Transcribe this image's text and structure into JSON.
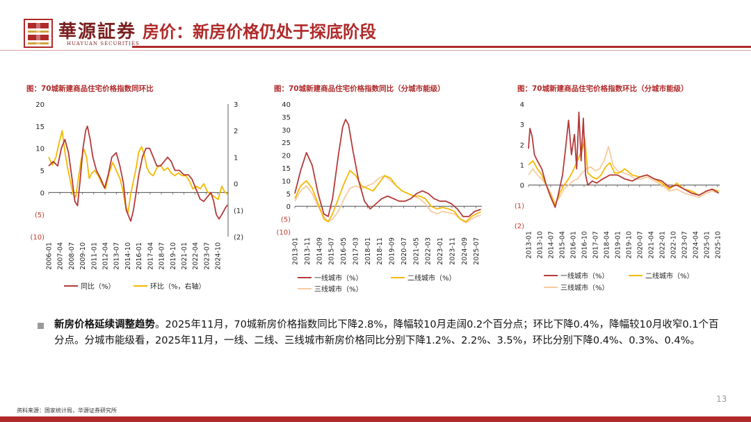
{
  "header": {
    "brand_cn": "華源証券",
    "brand_en": "HUAYUAN SECURITIES",
    "title": "房价：新房价格仍处于探底阶段",
    "accent": "#b02a2a"
  },
  "chart_titles": [
    "图：70城新建商品住宅价格指数同环比",
    "图：70城新建商品住宅价格指数同比（分城市能级）",
    "图：70城新建商品住宅价格指数环比（分城市能级）"
  ],
  "chart_data": [
    {
      "type": "line",
      "title": "图：70城新建商品住宅价格指数同环比",
      "x_ticks": [
        "2006-01",
        "2007-04",
        "2008-07",
        "2009-10",
        "2011-01",
        "2012-04",
        "2013-07",
        "2014-10",
        "2016-01",
        "2017-04",
        "2018-07",
        "2019-10",
        "2021-01",
        "2022-04",
        "2023-07",
        "2024-10"
      ],
      "ylim_left": [
        -10,
        20
      ],
      "yticks_left": [
        "20",
        "15",
        "10",
        "5",
        "0",
        "(5)",
        "(10)"
      ],
      "ylim_right": [
        -2,
        3
      ],
      "yticks_right": [
        "3",
        "2",
        "1",
        "0",
        "(1)",
        "(2)"
      ],
      "series": [
        {
          "name": "同比（%）",
          "axis": "left",
          "color": "#b5393a",
          "x": [
            2006.0,
            2006.5,
            2007.0,
            2007.4,
            2007.8,
            2008.2,
            2008.6,
            2008.9,
            2009.2,
            2009.5,
            2009.8,
            2010.1,
            2010.3,
            2010.6,
            2010.9,
            2011.3,
            2011.8,
            2012.2,
            2012.6,
            2013.0,
            2013.5,
            2013.9,
            2014.3,
            2014.6,
            2014.9,
            2015.1,
            2015.4,
            2015.7,
            2016.0,
            2016.4,
            2016.8,
            2017.2,
            2017.6,
            2018.0,
            2018.4,
            2018.8,
            2019.2,
            2019.6,
            2020.0,
            2020.5,
            2021.0,
            2021.5,
            2021.9,
            2022.3,
            2022.8,
            2023.2,
            2023.6,
            2024.0,
            2024.3,
            2024.6,
            2024.9,
            2025.2,
            2025.6,
            2025.83
          ],
          "y": [
            6,
            7,
            6,
            10,
            12,
            9,
            3,
            -2,
            -3,
            3,
            10,
            14,
            15,
            12,
            8,
            5,
            3,
            1,
            4,
            8,
            9,
            6,
            2,
            -4,
            -5.5,
            -6.5,
            -4,
            0,
            4,
            8,
            10,
            10,
            8,
            6,
            6,
            7,
            8,
            7,
            5,
            5,
            4,
            4,
            3,
            1,
            -1.5,
            -2,
            -1,
            0,
            -2,
            -5,
            -6,
            -5,
            -3.5,
            -2.8
          ]
        },
        {
          "name": "环比（%，右轴）",
          "axis": "right",
          "color": "#f4b800",
          "x": [
            2006.0,
            2006.4,
            2006.8,
            2007.2,
            2007.5,
            2007.8,
            2008.1,
            2008.4,
            2008.7,
            2009.0,
            2009.3,
            2009.6,
            2009.9,
            2010.2,
            2010.5,
            2010.8,
            2011.1,
            2011.5,
            2011.9,
            2012.3,
            2012.7,
            2013.1,
            2013.5,
            2013.9,
            2014.2,
            2014.5,
            2014.8,
            2015.1,
            2015.4,
            2015.7,
            2016.0,
            2016.3,
            2016.6,
            2016.9,
            2017.2,
            2017.6,
            2018.0,
            2018.4,
            2018.8,
            2019.2,
            2019.6,
            2020.0,
            2020.4,
            2020.8,
            2021.2,
            2021.6,
            2022.0,
            2022.4,
            2022.8,
            2023.2,
            2023.6,
            2024.0,
            2024.4,
            2024.8,
            2025.2,
            2025.5,
            2025.83
          ],
          "y": [
            1.0,
            0.7,
            1.0,
            1.6,
            2.0,
            1.2,
            0.6,
            0.1,
            -0.4,
            -0.5,
            0.2,
            0.9,
            1.3,
            1.0,
            0.2,
            0.4,
            0.5,
            0.3,
            0,
            -0.2,
            0.4,
            0.8,
            0.5,
            0.2,
            -0.2,
            -0.8,
            -1.1,
            -0.4,
            0.1,
            0.6,
            1.2,
            1.4,
            1.1,
            0.6,
            0.4,
            0.3,
            0.6,
            0.7,
            0.5,
            0.6,
            0.4,
            0.3,
            0.4,
            0.3,
            0.3,
            0.1,
            -0.2,
            -0.1,
            -0.2,
            0,
            -0.3,
            -0.4,
            -0.5,
            -0.6,
            -0.1,
            -0.3,
            -0.4
          ]
        }
      ]
    },
    {
      "type": "line",
      "title": "图：70城新建商品住宅价格指数同比（分城市能级）",
      "x_ticks": [
        "2013-01",
        "2013-11",
        "2014-09",
        "2015-07",
        "2016-05",
        "2017-03",
        "2018-01",
        "2018-11",
        "2019-09",
        "2020-07",
        "2021-05",
        "2022-03",
        "2023-01",
        "2023-11",
        "2024-09",
        "2025-07"
      ],
      "ylim": [
        -10,
        40
      ],
      "yticks": [
        "40",
        "35",
        "30",
        "25",
        "20",
        "15",
        "10",
        "5",
        "0",
        "(5)",
        "(10)"
      ],
      "series": [
        {
          "name": "一线城市（%）",
          "color": "#b5393a",
          "x": [
            2013.0,
            2013.4,
            2013.8,
            2014.2,
            2014.6,
            2015.0,
            2015.3,
            2015.6,
            2016.0,
            2016.3,
            2016.5,
            2016.7,
            2017.0,
            2017.4,
            2017.8,
            2018.2,
            2018.6,
            2019.0,
            2019.4,
            2019.8,
            2020.2,
            2020.6,
            2021.0,
            2021.4,
            2021.8,
            2022.2,
            2022.6,
            2023.0,
            2023.4,
            2023.8,
            2024.2,
            2024.6,
            2025.0,
            2025.4,
            2025.83
          ],
          "y": [
            5,
            14,
            21,
            16,
            5,
            -3,
            -4,
            3,
            20,
            31,
            34,
            32,
            22,
            10,
            2,
            -1,
            1,
            3,
            4,
            3,
            2,
            2,
            3,
            5,
            6,
            5,
            3,
            2,
            2,
            1,
            -1,
            -4,
            -4,
            -2,
            -1.2
          ]
        },
        {
          "name": "二线城市（%）",
          "color": "#f4b800",
          "x": [
            2013.0,
            2013.4,
            2013.8,
            2014.2,
            2014.6,
            2015.0,
            2015.3,
            2015.6,
            2016.0,
            2016.4,
            2016.8,
            2017.2,
            2017.6,
            2018.0,
            2018.4,
            2018.8,
            2019.2,
            2019.6,
            2020.0,
            2020.4,
            2020.8,
            2021.2,
            2021.6,
            2022.0,
            2022.4,
            2022.8,
            2023.2,
            2023.6,
            2024.0,
            2024.4,
            2024.8,
            2025.2,
            2025.5,
            2025.83
          ],
          "y": [
            3,
            8,
            10,
            7,
            1,
            -5,
            -6,
            -3,
            3,
            9,
            14,
            12,
            8,
            7,
            6,
            9,
            12,
            11,
            8,
            6,
            5,
            4,
            4,
            3,
            0,
            -1,
            -0.5,
            -1,
            -2,
            -5,
            -6,
            -4,
            -3,
            -2.2
          ]
        },
        {
          "name": "三线城市（%）",
          "color": "#f7cba0",
          "x": [
            2013.0,
            2013.4,
            2013.8,
            2014.2,
            2014.6,
            2015.0,
            2015.3,
            2015.6,
            2016.0,
            2016.4,
            2016.8,
            2017.2,
            2017.6,
            2018.0,
            2018.4,
            2018.8,
            2019.2,
            2019.6,
            2020.0,
            2020.4,
            2020.8,
            2021.2,
            2021.6,
            2022.0,
            2022.4,
            2022.8,
            2023.2,
            2023.6,
            2024.0,
            2024.4,
            2024.8,
            2025.2,
            2025.5,
            2025.83
          ],
          "y": [
            2,
            6,
            8,
            5,
            0,
            -4,
            -6,
            -5,
            -2,
            3,
            7,
            8,
            7,
            8,
            9,
            11,
            12,
            10,
            8,
            6,
            5,
            4,
            3,
            1,
            -2,
            -3,
            -2,
            -2.5,
            -3,
            -5,
            -6.5,
            -5,
            -4,
            -3.5
          ]
        }
      ]
    },
    {
      "type": "line",
      "title": "图：70城新建商品住宅价格指数环比（分城市能级）",
      "x_ticks": [
        "2013-01",
        "2013-10",
        "2014-07",
        "2015-04",
        "2016-01",
        "2016-10",
        "2017-07",
        "2018-04",
        "2019-01",
        "2019-10",
        "2020-07",
        "2021-04",
        "2022-01",
        "2022-10",
        "2023-07",
        "2024-04",
        "2025-01",
        "2025-10"
      ],
      "ylim": [
        -2,
        4
      ],
      "yticks": [
        "4",
        "3",
        "2",
        "1",
        "0",
        "(1)",
        "(2)"
      ],
      "series": [
        {
          "name": "一线城市（%）",
          "color": "#b5393a",
          "x": [
            2013.0,
            2013.1,
            2013.25,
            2013.4,
            2013.6,
            2013.9,
            2014.2,
            2014.5,
            2014.8,
            2015.0,
            2015.3,
            2015.5,
            2015.7,
            2015.9,
            2016.1,
            2016.25,
            2016.4,
            2016.55,
            2016.7,
            2016.85,
            2017.0,
            2017.3,
            2017.6,
            2018.0,
            2018.5,
            2019.0,
            2019.5,
            2020.0,
            2020.5,
            2021.0,
            2021.5,
            2022.0,
            2022.5,
            2023.0,
            2023.5,
            2024.0,
            2024.5,
            2025.0,
            2025.4,
            2025.83
          ],
          "y": [
            1.8,
            2.8,
            2.4,
            1.5,
            1.2,
            0.8,
            0,
            -0.6,
            -1.1,
            -0.5,
            0.5,
            1.8,
            3.2,
            1.5,
            2.5,
            0.8,
            3.6,
            1.2,
            3.3,
            0.5,
            0,
            0.2,
            0.1,
            0.3,
            0.5,
            0.5,
            0.3,
            0.2,
            0.4,
            0.5,
            0.3,
            0.2,
            -0.1,
            0,
            -0.2,
            -0.4,
            -0.5,
            -0.3,
            -0.2,
            -0.4
          ]
        },
        {
          "name": "二线城市（%）",
          "color": "#f4b800",
          "x": [
            2013.0,
            2013.3,
            2013.6,
            2013.9,
            2014.2,
            2014.5,
            2014.8,
            2015.1,
            2015.4,
            2015.7,
            2016.0,
            2016.3,
            2016.6,
            2016.8,
            2017.0,
            2017.3,
            2017.6,
            2017.9,
            2018.2,
            2018.5,
            2018.8,
            2019.1,
            2019.5,
            2020.0,
            2020.5,
            2021.0,
            2021.5,
            2022.0,
            2022.5,
            2023.0,
            2023.5,
            2024.0,
            2024.5,
            2025.0,
            2025.4,
            2025.83
          ],
          "y": [
            1,
            1.2,
            0.8,
            0.5,
            0,
            -0.5,
            -1.0,
            -0.4,
            0,
            0.3,
            0.7,
            1.2,
            1.7,
            2.3,
            0.6,
            0.4,
            0.3,
            0.5,
            0.9,
            1.1,
            0.6,
            0.6,
            0.8,
            0.5,
            0.4,
            0.5,
            0.3,
            0.1,
            -0.2,
            0.1,
            -0.2,
            -0.3,
            -0.5,
            -0.3,
            -0.2,
            -0.3
          ]
        },
        {
          "name": "三线城市（%）",
          "color": "#f7cba0",
          "x": [
            2013.0,
            2013.3,
            2013.6,
            2013.9,
            2014.2,
            2014.5,
            2014.8,
            2015.1,
            2015.4,
            2015.7,
            2016.0,
            2016.3,
            2016.6,
            2016.9,
            2017.2,
            2017.5,
            2017.8,
            2018.1,
            2018.4,
            2018.7,
            2019.0,
            2019.4,
            2019.8,
            2020.2,
            2020.6,
            2021.0,
            2021.5,
            2022.0,
            2022.5,
            2023.0,
            2023.5,
            2024.0,
            2024.5,
            2025.0,
            2025.4,
            2025.83
          ],
          "y": [
            0.5,
            0.8,
            0.5,
            0.3,
            0,
            -0.4,
            -0.9,
            -0.6,
            -0.2,
            0,
            0.2,
            0.3,
            0.6,
            0.8,
            0.9,
            0.7,
            0.8,
            1.2,
            1.9,
            1.0,
            0.7,
            0.6,
            0.5,
            0.3,
            0.3,
            0.4,
            0.2,
            0,
            -0.3,
            -0.2,
            -0.4,
            -0.5,
            -0.6,
            -0.4,
            -0.3,
            -0.4
          ]
        }
      ]
    }
  ],
  "paragraph": {
    "lead": "新房价格延续调整趋势",
    "body": "。2025年11月，70城新房价格指数同比下降2.8%，降幅较10月走阔0.2个百分点；环比下降0.4%，降幅较10月收窄0.1个百分点。分城市能级看，2025年11月，一线、二线、三线城市新房价格同比分别下降1.2%、2.2%、3.5%，环比分别下降0.4%、0.3%、0.4%。"
  },
  "footer": {
    "source": "资料来源：国家统计局，华源证券研究所",
    "page": "13"
  }
}
